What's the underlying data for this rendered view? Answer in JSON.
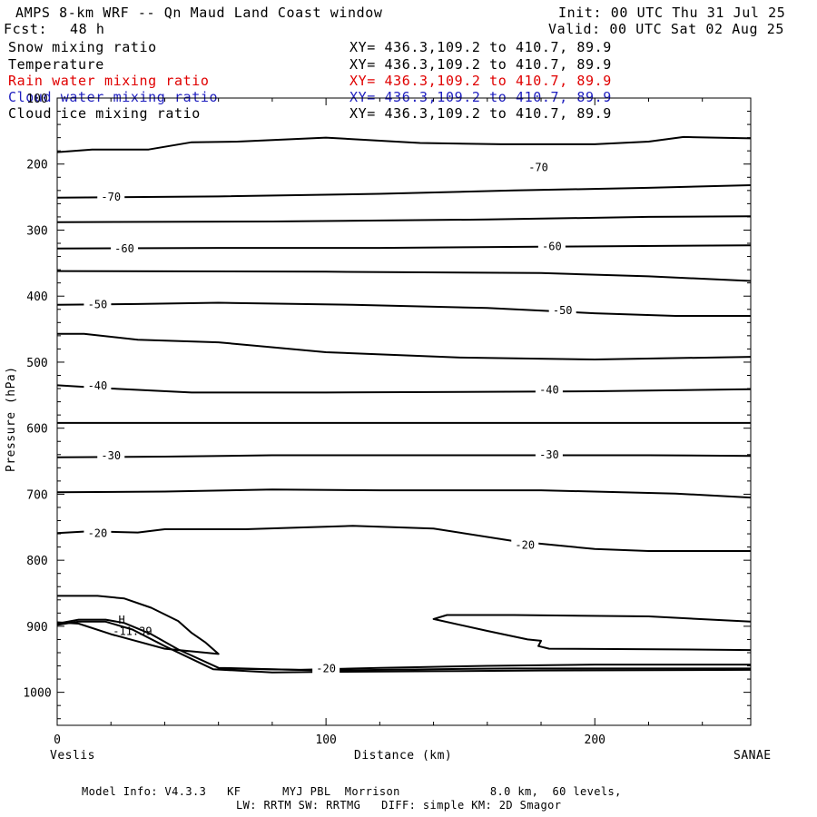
{
  "header": {
    "title": "AMPS 8-km WRF -- Qn Maud Land Coast window",
    "init": "Init: 00 UTC Thu 31 Jul 25",
    "fcst_label": "Fcst:",
    "fcst_value": "48 h",
    "valid": "Valid: 00 UTC Sat 02 Aug 25"
  },
  "legend": [
    {
      "name": "Snow mixing ratio",
      "xy": "XY= 436.3,109.2 to 410.7, 89.9",
      "color": "#000000"
    },
    {
      "name": "Temperature",
      "xy": "XY= 436.3,109.2 to 410.7, 89.9",
      "color": "#000000"
    },
    {
      "name": "Rain water mixing ratio",
      "xy": "XY= 436.3,109.2 to 410.7, 89.9",
      "color": "#e00000"
    },
    {
      "name": "Cloud water mixing ratio",
      "xy": "XY= 436.3,109.2 to 410.7, 89.9",
      "color": "#2020c0"
    },
    {
      "name": "Cloud ice mixing ratio",
      "xy": "XY= 436.3,109.2 to 410.7, 89.9",
      "color": "#000000"
    }
  ],
  "footer": {
    "line1": "Model Info: V4.3.3   KF      MYJ PBL  Morrison             8.0 km,  60 levels,",
    "line2": "LW: RRTM SW: RRTMG   DIFF: simple KM: 2D Smagor"
  },
  "chart_data": {
    "type": "contour",
    "xlabel": "Distance (km)",
    "ylabel": "Pressure (hPa)",
    "x_range": [
      0,
      258
    ],
    "y_range": [
      100,
      1050
    ],
    "y_scale": "linear-inverted",
    "x_ticks": [
      0,
      100,
      200
    ],
    "x_tick_labels": [
      "0",
      "100",
      "200"
    ],
    "y_ticks": [
      100,
      200,
      300,
      400,
      500,
      600,
      700,
      800,
      900,
      1000
    ],
    "y_tick_labels": [
      "100",
      "200",
      "300",
      "400",
      "500",
      "600",
      "700",
      "800",
      "900",
      "1000"
    ],
    "start_label": "Veslis",
    "end_label": "SANAE",
    "contours": [
      {
        "level": null,
        "points": [
          [
            0,
            182
          ],
          [
            13,
            178
          ],
          [
            34,
            178
          ],
          [
            50,
            167
          ],
          [
            67,
            166
          ],
          [
            100,
            160
          ],
          [
            135,
            168
          ],
          [
            165,
            170
          ],
          [
            200,
            170
          ],
          [
            220,
            166
          ],
          [
            233,
            159
          ],
          [
            258,
            161
          ]
        ]
      },
      {
        "level": -70,
        "labels": [
          [
            20,
            250
          ],
          [
            179,
            205
          ]
        ],
        "points": [
          [
            0,
            251
          ],
          [
            60,
            249
          ],
          [
            120,
            245
          ],
          [
            170,
            240
          ],
          [
            220,
            236
          ],
          [
            258,
            232
          ]
        ]
      },
      {
        "level": null,
        "points": [
          [
            0,
            288
          ],
          [
            80,
            287
          ],
          [
            160,
            284
          ],
          [
            220,
            280
          ],
          [
            258,
            279
          ]
        ]
      },
      {
        "level": -60,
        "labels": [
          [
            25,
            328
          ],
          [
            184,
            325
          ]
        ],
        "points": [
          [
            0,
            328
          ],
          [
            60,
            327
          ],
          [
            120,
            327
          ],
          [
            180,
            325
          ],
          [
            258,
            323
          ]
        ]
      },
      {
        "level": null,
        "points": [
          [
            0,
            362
          ],
          [
            100,
            363
          ],
          [
            180,
            365
          ],
          [
            220,
            370
          ],
          [
            258,
            377
          ]
        ]
      },
      {
        "level": -50,
        "labels": [
          [
            15,
            413
          ],
          [
            188,
            422
          ]
        ],
        "points": [
          [
            0,
            413
          ],
          [
            30,
            412
          ],
          [
            60,
            410
          ],
          [
            110,
            413
          ],
          [
            160,
            418
          ],
          [
            200,
            426
          ],
          [
            230,
            430
          ],
          [
            258,
            430
          ]
        ]
      },
      {
        "level": null,
        "points": [
          [
            0,
            457
          ],
          [
            10,
            457
          ],
          [
            30,
            466
          ],
          [
            60,
            470
          ],
          [
            100,
            485
          ],
          [
            150,
            493
          ],
          [
            200,
            496
          ],
          [
            258,
            492
          ]
        ]
      },
      {
        "level": -40,
        "labels": [
          [
            15,
            536
          ],
          [
            183,
            542
          ]
        ],
        "points": [
          [
            0,
            535
          ],
          [
            20,
            540
          ],
          [
            50,
            546
          ],
          [
            100,
            546
          ],
          [
            150,
            545
          ],
          [
            200,
            544
          ],
          [
            258,
            541
          ]
        ]
      },
      {
        "level": null,
        "points": [
          [
            0,
            592
          ],
          [
            100,
            592
          ],
          [
            200,
            592
          ],
          [
            258,
            592
          ]
        ]
      },
      {
        "level": -30,
        "labels": [
          [
            20,
            642
          ],
          [
            183,
            640
          ]
        ],
        "points": [
          [
            0,
            644
          ],
          [
            40,
            643
          ],
          [
            80,
            641
          ],
          [
            160,
            641
          ],
          [
            220,
            641
          ],
          [
            258,
            642
          ]
        ]
      },
      {
        "level": null,
        "points": [
          [
            0,
            697
          ],
          [
            40,
            696
          ],
          [
            80,
            693
          ],
          [
            120,
            694
          ],
          [
            180,
            694
          ],
          [
            230,
            699
          ],
          [
            258,
            705
          ]
        ]
      },
      {
        "level": -20,
        "labels": [
          [
            15,
            759
          ],
          [
            174,
            777
          ]
        ],
        "points": [
          [
            0,
            759
          ],
          [
            12,
            756
          ],
          [
            30,
            758
          ],
          [
            40,
            753
          ],
          [
            70,
            753
          ],
          [
            110,
            748
          ],
          [
            140,
            752
          ],
          [
            170,
            771
          ],
          [
            200,
            783
          ],
          [
            220,
            786
          ],
          [
            258,
            786
          ]
        ]
      },
      {
        "level": null,
        "points": [
          [
            0,
            854
          ],
          [
            15,
            854
          ],
          [
            25,
            858
          ],
          [
            35,
            872
          ],
          [
            45,
            892
          ],
          [
            50,
            910
          ],
          [
            55,
            924
          ],
          [
            60,
            942
          ],
          [
            40,
            934
          ],
          [
            20,
            912
          ],
          [
            8,
            896
          ],
          [
            0,
            894
          ]
        ]
      },
      {
        "level": null,
        "points": [
          [
            0,
            896
          ],
          [
            8,
            890
          ],
          [
            18,
            890
          ],
          [
            25,
            895
          ],
          [
            35,
            912
          ],
          [
            45,
            935
          ],
          [
            60,
            963
          ],
          [
            80,
            965
          ],
          [
            100,
            967
          ],
          [
            140,
            965
          ],
          [
            170,
            964
          ],
          [
            200,
            964
          ],
          [
            258,
            964
          ]
        ]
      },
      {
        "level": -20,
        "labels": [
          [
            100,
            964
          ]
        ],
        "points": [
          [
            0,
            898
          ],
          [
            8,
            893
          ],
          [
            18,
            893
          ],
          [
            28,
            905
          ],
          [
            40,
            930
          ],
          [
            58,
            965
          ],
          [
            80,
            970
          ],
          [
            100,
            969
          ],
          [
            140,
            968
          ],
          [
            180,
            967
          ],
          [
            258,
            966
          ]
        ]
      },
      {
        "level": null,
        "points": [
          [
            258,
            893
          ],
          [
            220,
            885
          ],
          [
            170,
            883
          ],
          [
            145,
            883
          ],
          [
            140,
            889
          ],
          [
            160,
            907
          ],
          [
            175,
            920
          ],
          [
            180,
            922
          ],
          [
            179,
            930
          ],
          [
            183,
            934
          ],
          [
            230,
            935
          ],
          [
            258,
            936
          ]
        ]
      },
      {
        "level": null,
        "points": [
          [
            60,
            964
          ],
          [
            90,
            966
          ],
          [
            120,
            963
          ],
          [
            160,
            960
          ],
          [
            200,
            958
          ],
          [
            258,
            958
          ]
        ]
      }
    ],
    "annotations": [
      {
        "text": "H",
        "x": 24,
        "y": 896
      },
      {
        "text": "-11.39",
        "x": 28,
        "y": 913
      }
    ]
  }
}
